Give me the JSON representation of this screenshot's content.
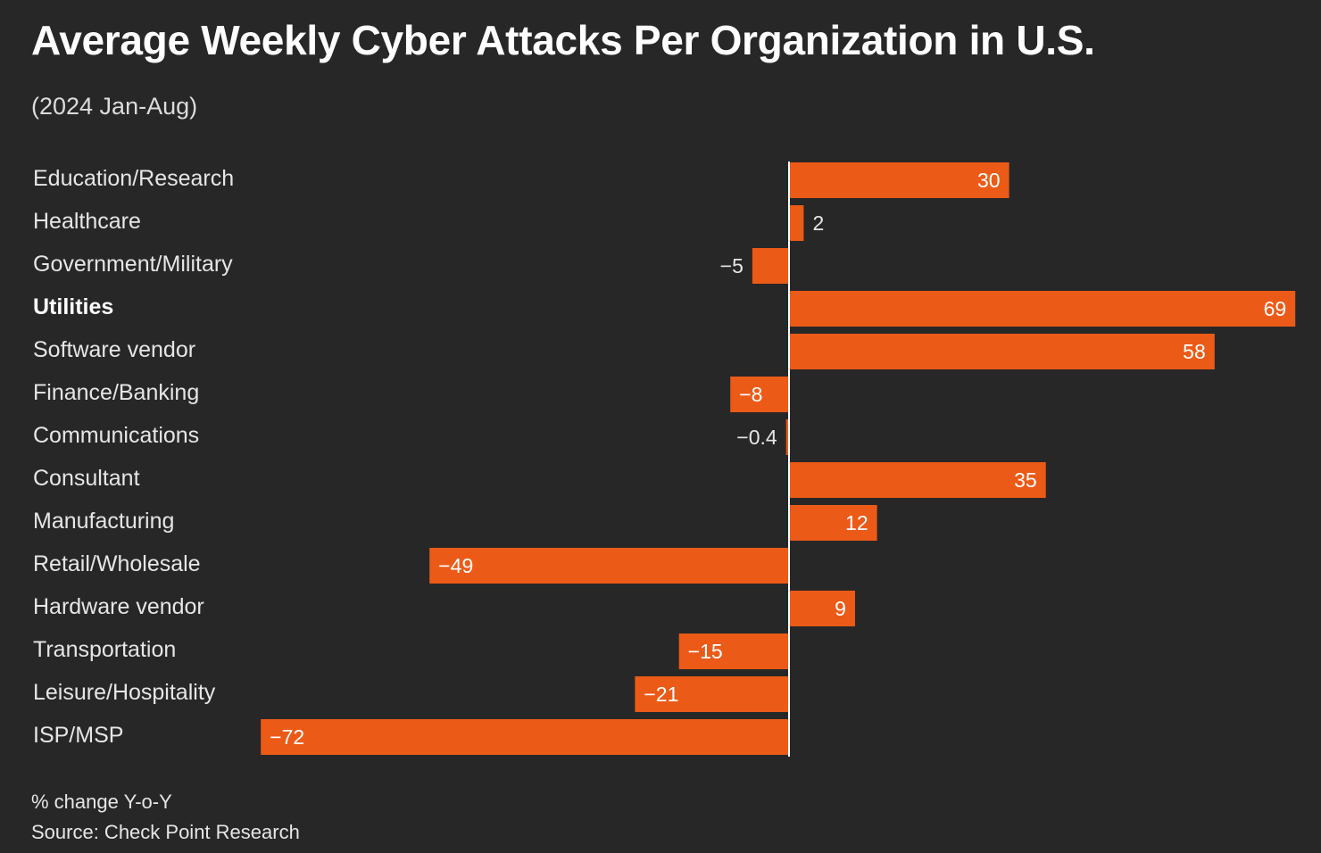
{
  "header": {
    "title": "Average Weekly Cyber Attacks Per Organization in U.S.",
    "subtitle": "(2024 Jan-Aug)"
  },
  "footer": {
    "unit_note": "% change Y-o-Y",
    "source": "Source: Check Point Research"
  },
  "colors": {
    "background": "#272727",
    "bar": "#ec5a17",
    "label_text": "#e6e6e6",
    "value_text_inside": "#ffffff",
    "zero_line": "#ffffff"
  },
  "chart_data": {
    "type": "bar",
    "orientation": "horizontal",
    "title": "Average Weekly Cyber Attacks Per Organization in U.S.",
    "subtitle": "(2024 Jan-Aug)",
    "categories": [
      "Education/Research",
      "Healthcare",
      "Government/Military",
      "Utilities",
      "Software vendor",
      "Finance/Banking",
      "Communications",
      "Consultant",
      "Manufacturing",
      "Retail/Wholesale",
      "Hardware vendor",
      "Transportation",
      "Leisure/Hospitality",
      "ISP/MSP"
    ],
    "values": [
      30,
      2,
      -5,
      69,
      58,
      -8,
      -0.4,
      35,
      12,
      -49,
      9,
      -15,
      -21,
      -72
    ],
    "value_labels": [
      "30",
      "2",
      "−5",
      "69",
      "58",
      "−8",
      "−0.4",
      "35",
      "12",
      "−49",
      "9",
      "−15",
      "−21",
      "−72"
    ],
    "highlighted_category": "Utilities",
    "xlim": [
      -72,
      69
    ],
    "xlabel": "% change Y-o-Y",
    "ylabel": "",
    "grid": false,
    "legend": "none",
    "source": "Source: Check Point Research"
  }
}
